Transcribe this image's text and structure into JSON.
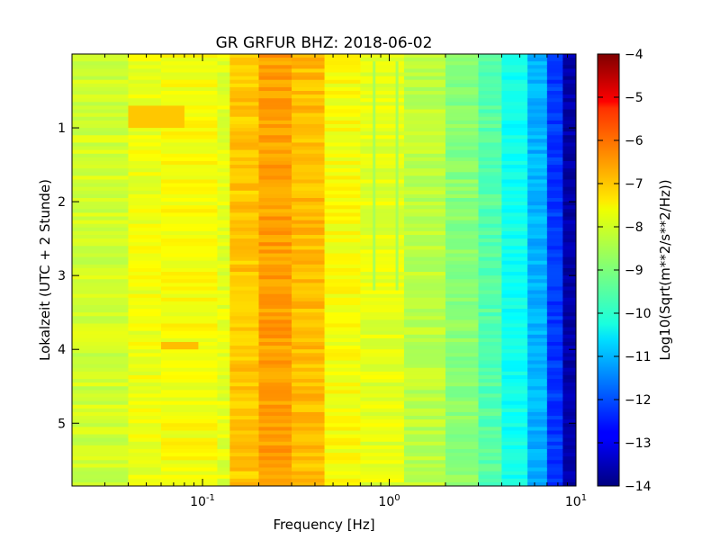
{
  "chart_data": {
    "type": "heatmap",
    "title": "GR GRFUR BHZ: 2018-06-02",
    "xlabel": "Frequency [Hz]",
    "ylabel": "Lokalzeit (UTC + 2 Stunde)",
    "x_scale": "log",
    "xlim": [
      0.02,
      10
    ],
    "x_ticks": [
      {
        "value": 0.1,
        "base": "10",
        "exp": "-1"
      },
      {
        "value": 1,
        "base": "10",
        "exp": "0"
      },
      {
        "value": 10,
        "base": "10",
        "exp": "1"
      }
    ],
    "ylim": [
      5.85,
      0
    ],
    "y_inverted": true,
    "y_ticks": [
      {
        "value": 1,
        "label": "1"
      },
      {
        "value": 2,
        "label": "2"
      },
      {
        "value": 3,
        "label": "3"
      },
      {
        "value": 4,
        "label": "4"
      },
      {
        "value": 5,
        "label": "5"
      }
    ],
    "colorbar": {
      "label": "Log10(Sqrt(m**2/s**2/Hz))",
      "range": [
        -14,
        -4
      ],
      "colormap": "jet",
      "ticks": [
        {
          "value": -4,
          "label": "−4"
        },
        {
          "value": -5,
          "label": "−5"
        },
        {
          "value": -6,
          "label": "−6"
        },
        {
          "value": -7,
          "label": "−7"
        },
        {
          "value": -8,
          "label": "−8"
        },
        {
          "value": -9,
          "label": "−9"
        },
        {
          "value": -10,
          "label": "−10"
        },
        {
          "value": -11,
          "label": "−11"
        },
        {
          "value": -12,
          "label": "−12"
        },
        {
          "value": -13,
          "label": "−13"
        },
        {
          "value": -14,
          "label": "−14"
        }
      ]
    },
    "frequency_bands": [
      {
        "f_min": 0.02,
        "f_max": 0.04,
        "value": -8.2
      },
      {
        "f_min": 0.04,
        "f_max": 0.06,
        "value": -7.9
      },
      {
        "f_min": 0.06,
        "f_max": 0.12,
        "value": -7.8
      },
      {
        "f_min": 0.12,
        "f_max": 0.14,
        "value": -8.0
      },
      {
        "f_min": 0.14,
        "f_max": 0.2,
        "value": -7.2
      },
      {
        "f_min": 0.2,
        "f_max": 0.3,
        "value": -6.8
      },
      {
        "f_min": 0.3,
        "f_max": 0.45,
        "value": -7.1
      },
      {
        "f_min": 0.45,
        "f_max": 0.7,
        "value": -7.8
      },
      {
        "f_min": 0.7,
        "f_max": 1.2,
        "value": -8.0
      },
      {
        "f_min": 1.2,
        "f_max": 2.0,
        "value": -8.4
      },
      {
        "f_min": 2.0,
        "f_max": 3.0,
        "value": -8.9
      },
      {
        "f_min": 3.0,
        "f_max": 4.0,
        "value": -9.4
      },
      {
        "f_min": 4.0,
        "f_max": 5.5,
        "value": -10.1
      },
      {
        "f_min": 5.5,
        "f_max": 7.0,
        "value": -11.0
      },
      {
        "f_min": 7.0,
        "f_max": 8.5,
        "value": -12.2
      },
      {
        "f_min": 8.5,
        "f_max": 10.0,
        "value": -13.6
      }
    ],
    "narrow_lines": [
      {
        "frequency": 0.83,
        "time_range": [
          0.1,
          3.2
        ],
        "value": -8.6
      },
      {
        "frequency": 1.1,
        "time_range": [
          0.1,
          3.2
        ],
        "value": -8.6
      }
    ],
    "events": [
      {
        "f_min": 0.06,
        "f_max": 0.095,
        "time_range": [
          3.9,
          4.0
        ],
        "value": -7.1
      },
      {
        "f_min": 0.04,
        "f_max": 0.08,
        "time_range": [
          0.7,
          1.0
        ],
        "value": -7.2
      }
    ]
  }
}
